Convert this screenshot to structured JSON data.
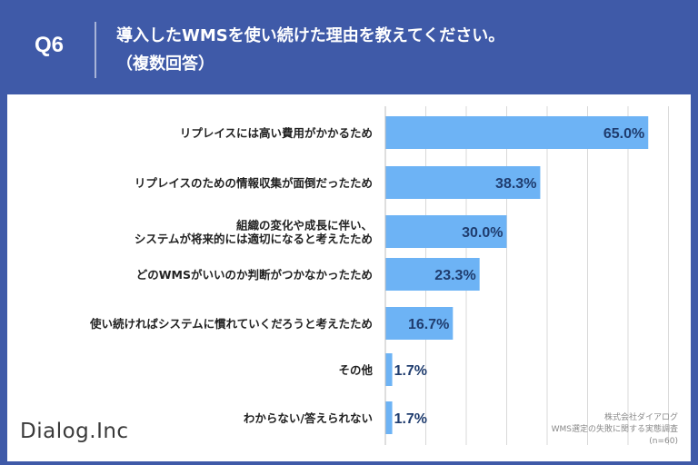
{
  "header": {
    "question_number": "Q6",
    "title_line1": "導入したWMSを使い続けた理由を教えてください。",
    "title_line2": "（複数回答）"
  },
  "branding": {
    "logo_text": "Dialog.Inc"
  },
  "source": {
    "company": "株式会社ダイアログ",
    "survey": "WMS選定の失敗に関する実態調査",
    "sample": "(n=60)"
  },
  "colors": {
    "header_bg": "#3f5aa8",
    "bar": "#6db3f5",
    "grid": "#d9d9d9",
    "label_text": "#1f3c6e"
  },
  "chart_data": {
    "type": "bar",
    "orientation": "horizontal",
    "unit": "%",
    "xlim": [
      0,
      70
    ],
    "categories": [
      [
        "リプレイスには高い費用がかかるため"
      ],
      [
        "リプレイスのための情報収集が面倒だったため"
      ],
      [
        "組織の変化や成長に伴い、",
        "システムが将来的には適切になると考えたため"
      ],
      [
        "どのWMSがいいのか判断がつかなかったため"
      ],
      [
        "使い続ければシステムに慣れていくだろうと考えたため"
      ],
      [
        "その他"
      ],
      [
        "わからない/答えられない"
      ]
    ],
    "values": [
      65.0,
      38.3,
      30.0,
      23.3,
      16.7,
      1.7,
      1.7
    ],
    "value_labels": [
      "65.0%",
      "38.3%",
      "30.0%",
      "23.3%",
      "16.7%",
      "1.7%",
      "1.7%"
    ]
  }
}
